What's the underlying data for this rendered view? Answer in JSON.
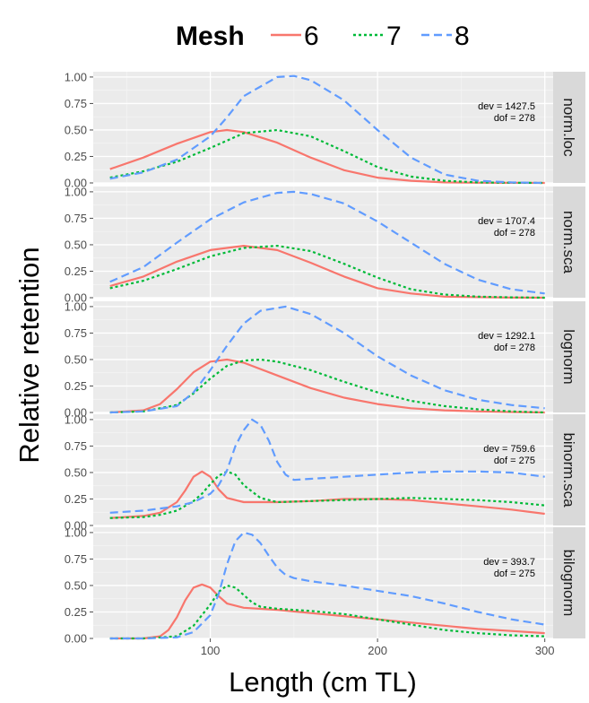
{
  "chart_data": {
    "type": "line",
    "xlabel": "Length (cm TL)",
    "ylabel": "Relative retention",
    "xlim": [
      30,
      305
    ],
    "ylim": [
      0,
      1.05
    ],
    "x_ticks": [
      100,
      200,
      300
    ],
    "x_tick_labels": [
      "100",
      "200",
      "300"
    ],
    "y_ticks": [
      0,
      0.25,
      0.5,
      0.75,
      1
    ],
    "y_tick_labels": [
      "0.00",
      "0.25",
      "0.50",
      "0.75",
      "1.00"
    ],
    "grid": true,
    "legend": {
      "title": "Mesh",
      "position": "top",
      "entries": [
        {
          "label": "6",
          "color": "#F8766D",
          "dash": "solid"
        },
        {
          "label": "7",
          "color": "#00BA38",
          "dash": "dotted"
        },
        {
          "label": "8",
          "color": "#619CFF",
          "dash": "dashed"
        }
      ]
    },
    "facets": [
      {
        "strip": "norm.loc",
        "annotation": [
          "dev = 1427.5",
          "dof = 278"
        ],
        "series": [
          {
            "name": "6",
            "x": [
              40,
              60,
              80,
              100,
              110,
              120,
              140,
              160,
              180,
              200,
              220,
              240,
              260,
              280,
              300
            ],
            "y": [
              0.13,
              0.24,
              0.37,
              0.48,
              0.5,
              0.48,
              0.38,
              0.24,
              0.12,
              0.05,
              0.02,
              0.005,
              0.002,
              0.001,
              0
            ]
          },
          {
            "name": "7",
            "x": [
              40,
              60,
              80,
              100,
              110,
              120,
              140,
              160,
              180,
              200,
              220,
              240,
              260,
              280,
              300
            ],
            "y": [
              0.05,
              0.11,
              0.2,
              0.33,
              0.4,
              0.47,
              0.5,
              0.44,
              0.3,
              0.15,
              0.06,
              0.02,
              0.005,
              0.002,
              0
            ]
          },
          {
            "name": "8",
            "x": [
              40,
              60,
              80,
              100,
              110,
              120,
              140,
              150,
              160,
              180,
              200,
              220,
              240,
              260,
              280,
              300
            ],
            "y": [
              0.04,
              0.1,
              0.22,
              0.44,
              0.62,
              0.82,
              1.0,
              1.01,
              0.97,
              0.78,
              0.5,
              0.24,
              0.08,
              0.02,
              0.005,
              0
            ]
          }
        ]
      },
      {
        "strip": "norm.sca",
        "annotation": [
          "dev = 1707.4",
          "dof = 278"
        ],
        "series": [
          {
            "name": "6",
            "x": [
              40,
              60,
              80,
              100,
              120,
              140,
              160,
              180,
              200,
              220,
              240,
              260,
              280,
              300
            ],
            "y": [
              0.11,
              0.2,
              0.34,
              0.45,
              0.49,
              0.45,
              0.33,
              0.2,
              0.09,
              0.04,
              0.01,
              0.005,
              0.001,
              0
            ]
          },
          {
            "name": "7",
            "x": [
              40,
              60,
              80,
              100,
              120,
              140,
              160,
              180,
              200,
              220,
              240,
              260,
              280,
              300
            ],
            "y": [
              0.09,
              0.16,
              0.27,
              0.39,
              0.47,
              0.49,
              0.44,
              0.32,
              0.19,
              0.08,
              0.03,
              0.01,
              0.003,
              0
            ]
          },
          {
            "name": "8",
            "x": [
              40,
              60,
              80,
              100,
              120,
              140,
              150,
              160,
              180,
              200,
              220,
              240,
              260,
              280,
              300
            ],
            "y": [
              0.15,
              0.29,
              0.52,
              0.74,
              0.9,
              0.99,
              1.0,
              0.98,
              0.89,
              0.72,
              0.52,
              0.32,
              0.17,
              0.08,
              0.04
            ]
          }
        ]
      },
      {
        "strip": "lognorm",
        "annotation": [
          "dev = 1292.1",
          "dof = 278"
        ],
        "series": [
          {
            "name": "6",
            "x": [
              40,
              60,
              70,
              80,
              90,
              100,
              110,
              120,
              140,
              160,
              180,
              200,
              220,
              240,
              260,
              280,
              300
            ],
            "y": [
              0,
              0.02,
              0.08,
              0.22,
              0.38,
              0.48,
              0.5,
              0.47,
              0.35,
              0.23,
              0.14,
              0.08,
              0.04,
              0.02,
              0.01,
              0.004,
              0
            ]
          },
          {
            "name": "7",
            "x": [
              40,
              60,
              80,
              90,
              100,
              110,
              120,
              130,
              140,
              160,
              180,
              200,
              220,
              240,
              260,
              280,
              300
            ],
            "y": [
              0,
              0.01,
              0.07,
              0.18,
              0.32,
              0.44,
              0.49,
              0.5,
              0.48,
              0.4,
              0.29,
              0.19,
              0.11,
              0.06,
              0.03,
              0.01,
              0
            ]
          },
          {
            "name": "8",
            "x": [
              40,
              60,
              80,
              90,
              100,
              110,
              120,
              130,
              145,
              160,
              180,
              200,
              220,
              240,
              260,
              280,
              300
            ],
            "y": [
              0,
              0.01,
              0.06,
              0.19,
              0.4,
              0.63,
              0.84,
              0.96,
              1.0,
              0.93,
              0.75,
              0.53,
              0.35,
              0.21,
              0.12,
              0.07,
              0.04
            ]
          }
        ]
      },
      {
        "strip": "binorm.sca",
        "annotation": [
          "dev = 759.6",
          "dof = 275"
        ],
        "series": [
          {
            "name": "6",
            "x": [
              40,
              60,
              70,
              80,
              85,
              90,
              95,
              100,
              105,
              110,
              120,
              140,
              160,
              180,
              200,
              220,
              240,
              260,
              280,
              300
            ],
            "y": [
              0.07,
              0.09,
              0.12,
              0.22,
              0.33,
              0.46,
              0.51,
              0.46,
              0.34,
              0.26,
              0.22,
              0.22,
              0.23,
              0.25,
              0.25,
              0.24,
              0.21,
              0.18,
              0.15,
              0.11
            ]
          },
          {
            "name": "7",
            "x": [
              40,
              60,
              70,
              80,
              90,
              95,
              100,
              105,
              110,
              115,
              120,
              130,
              140,
              160,
              180,
              200,
              220,
              240,
              260,
              280,
              300
            ],
            "y": [
              0.07,
              0.08,
              0.1,
              0.14,
              0.23,
              0.3,
              0.39,
              0.47,
              0.51,
              0.48,
              0.38,
              0.26,
              0.22,
              0.23,
              0.24,
              0.25,
              0.26,
              0.25,
              0.24,
              0.22,
              0.19
            ]
          },
          {
            "name": "8",
            "x": [
              40,
              60,
              80,
              90,
              100,
              105,
              110,
              115,
              120,
              125,
              130,
              135,
              140,
              145,
              150,
              160,
              180,
              200,
              220,
              240,
              260,
              280,
              300
            ],
            "y": [
              0.12,
              0.14,
              0.18,
              0.22,
              0.3,
              0.38,
              0.52,
              0.75,
              0.9,
              1.0,
              0.95,
              0.8,
              0.6,
              0.48,
              0.43,
              0.44,
              0.46,
              0.48,
              0.5,
              0.51,
              0.51,
              0.5,
              0.46
            ]
          }
        ]
      },
      {
        "strip": "bilognorm",
        "annotation": [
          "dev = 393.7",
          "dof = 275"
        ],
        "series": [
          {
            "name": "6",
            "x": [
              40,
              60,
              70,
              75,
              80,
              85,
              90,
              95,
              100,
              105,
              110,
              120,
              140,
              160,
              180,
              200,
              220,
              240,
              260,
              280,
              300
            ],
            "y": [
              0,
              0,
              0.02,
              0.08,
              0.2,
              0.36,
              0.48,
              0.51,
              0.48,
              0.4,
              0.33,
              0.29,
              0.27,
              0.24,
              0.21,
              0.18,
              0.15,
              0.12,
              0.09,
              0.07,
              0.05
            ]
          },
          {
            "name": "7",
            "x": [
              40,
              60,
              80,
              90,
              100,
              105,
              110,
              115,
              120,
              125,
              130,
              140,
              160,
              180,
              200,
              220,
              240,
              260,
              280,
              300
            ],
            "y": [
              0,
              0,
              0.02,
              0.12,
              0.32,
              0.44,
              0.5,
              0.48,
              0.41,
              0.34,
              0.3,
              0.28,
              0.26,
              0.23,
              0.18,
              0.13,
              0.08,
              0.05,
              0.03,
              0.02
            ]
          },
          {
            "name": "8",
            "x": [
              40,
              60,
              80,
              90,
              100,
              105,
              110,
              115,
              120,
              125,
              130,
              135,
              140,
              145,
              150,
              160,
              180,
              200,
              220,
              240,
              260,
              280,
              300
            ],
            "y": [
              0,
              0,
              0.01,
              0.06,
              0.22,
              0.42,
              0.7,
              0.92,
              1.0,
              0.98,
              0.9,
              0.78,
              0.67,
              0.6,
              0.57,
              0.54,
              0.5,
              0.45,
              0.4,
              0.33,
              0.25,
              0.18,
              0.13
            ]
          }
        ]
      }
    ]
  }
}
